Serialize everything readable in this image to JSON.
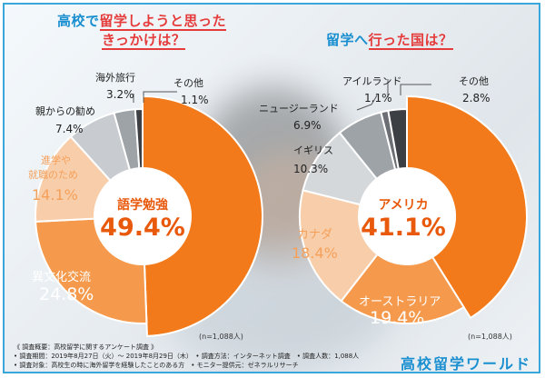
{
  "titles": {
    "left_line1_pre": "高校で",
    "left_line1_accent": "留学しようと思った",
    "left_line2_accent": "きっかけは？",
    "right_pre": "留学へ",
    "right_accent": "行った国は？"
  },
  "chart_data": [
    {
      "type": "pie",
      "title": "高校で留学しようと思ったきっかけは？",
      "categories": [
        "語学勉強",
        "異文化交流",
        "進学や就職のため",
        "親からの勧め",
        "海外旅行",
        "その他"
      ],
      "values": [
        49.4,
        24.8,
        14.1,
        7.4,
        3.2,
        1.1
      ],
      "units": "%",
      "labels": {
        "c0": "語学勉強",
        "p0": "49.4%",
        "c1": "異文化交流",
        "p1": "24.8%",
        "c2a": "進学や",
        "c2b": "就職のため",
        "p2": "14.1%",
        "c3": "親からの勧め",
        "p3": "7.4%",
        "c4": "海外旅行",
        "p4": "3.2%",
        "c5": "その他",
        "p5": "1.1%"
      },
      "colors": [
        "#f27a1a",
        "#f59a4c",
        "#f8ceaa",
        "#c8cbcf",
        "#9ea3a8",
        "#3c3f44"
      ],
      "n_note": "(n=1,088人)"
    },
    {
      "type": "pie",
      "title": "留学へ行った国は？",
      "categories": [
        "アメリカ",
        "オーストラリア",
        "カナダ",
        "イギリス",
        "ニュージーランド",
        "アイルランド",
        "その他"
      ],
      "values": [
        41.1,
        19.4,
        18.4,
        10.3,
        6.9,
        1.1,
        2.8
      ],
      "units": "%",
      "labels": {
        "c0": "アメリカ",
        "p0": "41.1%",
        "c1": "オーストラリア",
        "p1": "19.4%",
        "c2": "カナダ",
        "p2": "18.4%",
        "c3": "イギリス",
        "p3": "10.3%",
        "c4": "ニュージーランド",
        "p4": "6.9%",
        "c5": "アイルランド",
        "p5": "1.1%",
        "c6": "その他",
        "p6": "2.8%"
      },
      "colors": [
        "#f27a1a",
        "#f59a4c",
        "#f8ceaa",
        "#d5d8db",
        "#9ea3a8",
        "#6b6f74",
        "#3c3f44"
      ],
      "n_note": "(n=1,088人)"
    }
  ],
  "footer": {
    "line1": "《 調査概要：高校留学に関するアンケート調査 》",
    "line2": "• 調査期間：2019年8月27日（火）～ 2019年8月29日（木）　• 調査方法：インターネット調査　• 調査人数：1,088人",
    "line3": "• 調査対象：高校生の時に海外留学を経験したことのある方　• モニター提供元：ゼネラルリサーチ"
  },
  "logo": {
    "text": "高校留学ワールド"
  }
}
